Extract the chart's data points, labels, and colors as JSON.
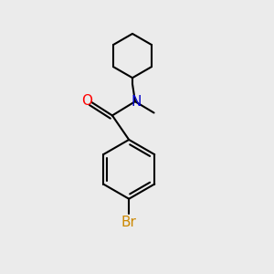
{
  "bg_color": "#ebebeb",
  "bond_color": "#000000",
  "O_color": "#ff0000",
  "N_color": "#0000cc",
  "Br_color": "#cc8800",
  "line_width": 1.5,
  "font_size": 11,
  "figsize": [
    3.0,
    3.0
  ],
  "dpi": 100,
  "xlim": [
    0,
    10
  ],
  "ylim": [
    0,
    10
  ]
}
